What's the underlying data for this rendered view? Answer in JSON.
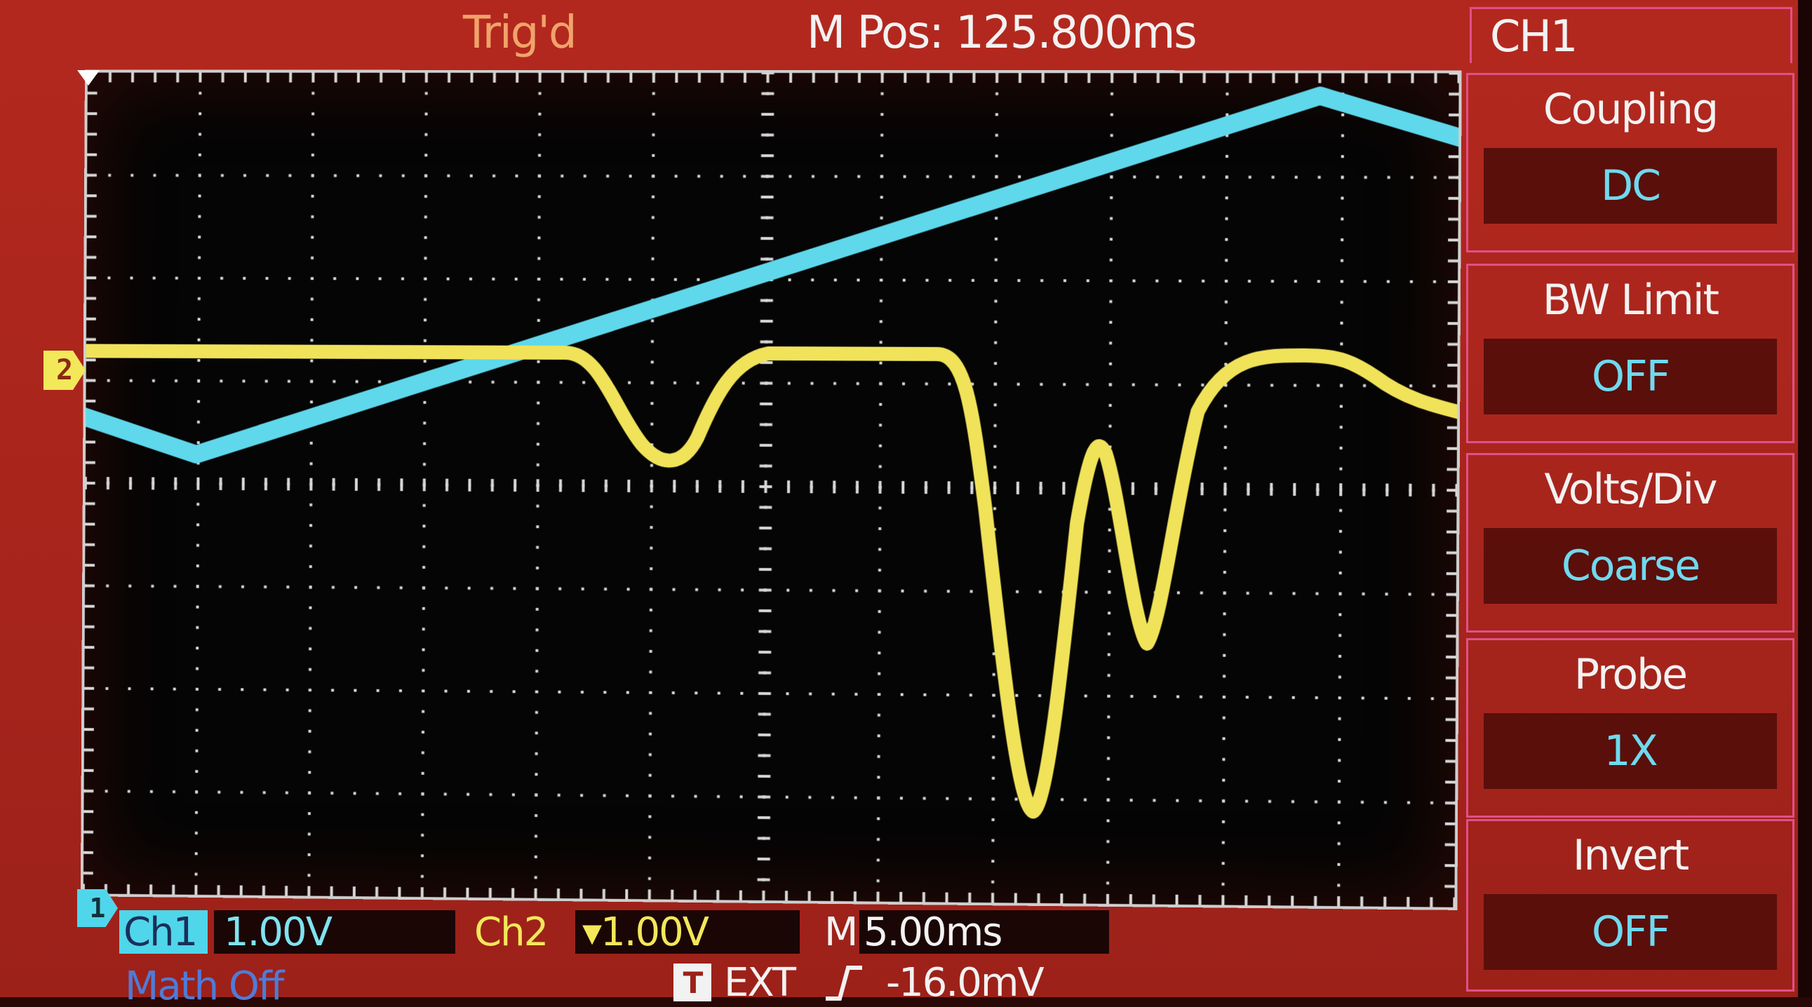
{
  "header": {
    "trigger_status": "Trig'd",
    "m_pos": "M Pos: 125.800ms",
    "menu_title": "CH1"
  },
  "markers": {
    "ch2": "2",
    "ch1": "1"
  },
  "bottom": {
    "ch1_label": "Ch1",
    "ch1_scale": "1.00V",
    "ch2_label": "Ch2",
    "ch2_scale": "▾1.00V",
    "time_label": "M",
    "time_scale": "5.00ms",
    "math": "Math Off",
    "trigger_badge": "T",
    "trigger_source": "EXT",
    "trigger_level": "-16.0mV"
  },
  "menu": {
    "items": [
      {
        "label": "Coupling",
        "value": "DC"
      },
      {
        "label": "BW  Limit",
        "value": "OFF"
      },
      {
        "label": "Volts/Div",
        "value": "Coarse"
      },
      {
        "label": "Probe",
        "value": "1X"
      },
      {
        "label": "Invert",
        "value": "OFF"
      }
    ]
  },
  "colors": {
    "ch1": "#4fd6ea",
    "ch2": "#f2e85a",
    "background": "#a8251c",
    "menu_border": "#e0508a"
  }
}
